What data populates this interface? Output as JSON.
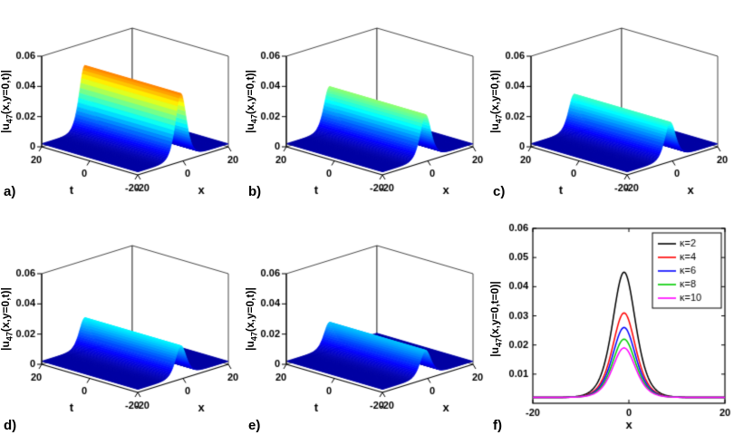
{
  "figure": {
    "background": "#ffffff",
    "colormap": "jet",
    "accent_colors": {
      "low": "#00008f",
      "high": "#d40000"
    }
  },
  "chart_data": [
    {
      "panel_label": "a)",
      "type": "surface3d",
      "ylabel": {
        "prefix": "|u",
        "sub": "47",
        "suffix": "(x,y=0,t)|"
      },
      "xlabel": "x",
      "tlabel": "t",
      "x_range": [
        -20,
        20
      ],
      "t_range": [
        -20,
        20
      ],
      "z_range": [
        0,
        0.06
      ],
      "x_ticks": [
        -20,
        0,
        20
      ],
      "t_ticks": [
        20,
        0,
        -20
      ],
      "z_ticks": [
        0,
        0.02,
        0.04,
        0.06
      ],
      "colormap": "jet",
      "cmax": 0.06,
      "surface": {
        "peak": 0.045,
        "center": -1,
        "width": 3.2,
        "baseline": 0.002
      }
    },
    {
      "panel_label": "b)",
      "type": "surface3d",
      "ylabel": {
        "prefix": "|u",
        "sub": "47",
        "suffix": "(x,y=0,t)|"
      },
      "xlabel": "x",
      "tlabel": "t",
      "x_range": [
        -20,
        20
      ],
      "t_range": [
        -20,
        20
      ],
      "z_range": [
        0,
        0.06
      ],
      "x_ticks": [
        -20,
        0,
        20
      ],
      "t_ticks": [
        20,
        0,
        -20
      ],
      "z_ticks": [
        0,
        0.02,
        0.04,
        0.06
      ],
      "colormap": "jet",
      "cmax": 0.06,
      "surface": {
        "peak": 0.031,
        "center": -1,
        "width": 3.2,
        "baseline": 0.002
      }
    },
    {
      "panel_label": "c)",
      "type": "surface3d",
      "ylabel": {
        "prefix": "|u",
        "sub": "47",
        "suffix": "(x,y=0,t)|"
      },
      "xlabel": "x",
      "tlabel": "t",
      "x_range": [
        -20,
        20
      ],
      "t_range": [
        -20,
        20
      ],
      "z_range": [
        0,
        0.06
      ],
      "x_ticks": [
        -20,
        0,
        20
      ],
      "t_ticks": [
        20,
        0,
        -20
      ],
      "z_ticks": [
        0,
        0.02,
        0.04,
        0.06
      ],
      "colormap": "jet",
      "cmax": 0.06,
      "surface": {
        "peak": 0.026,
        "center": -1,
        "width": 3.2,
        "baseline": 0.002
      }
    },
    {
      "panel_label": "d)",
      "type": "surface3d",
      "ylabel": {
        "prefix": "|u",
        "sub": "47",
        "suffix": "(x,y=0,t)|"
      },
      "xlabel": "x",
      "tlabel": "t",
      "x_range": [
        -20,
        20
      ],
      "t_range": [
        -20,
        20
      ],
      "z_range": [
        0,
        0.06
      ],
      "x_ticks": [
        -20,
        0,
        20
      ],
      "t_ticks": [
        20,
        0,
        -20
      ],
      "z_ticks": [
        0,
        0.02,
        0.04,
        0.06
      ],
      "colormap": "jet",
      "cmax": 0.06,
      "surface": {
        "peak": 0.022,
        "center": -1,
        "width": 3.2,
        "baseline": 0.002
      }
    },
    {
      "panel_label": "e)",
      "type": "surface3d",
      "ylabel": {
        "prefix": "|u",
        "sub": "47",
        "suffix": "(x,y=0,t)|"
      },
      "xlabel": "x",
      "tlabel": "t",
      "x_range": [
        -20,
        20
      ],
      "t_range": [
        -20,
        20
      ],
      "z_range": [
        0,
        0.06
      ],
      "x_ticks": [
        -20,
        0,
        20
      ],
      "t_ticks": [
        20,
        0,
        -20
      ],
      "z_ticks": [
        0,
        0.02,
        0.04,
        0.06
      ],
      "colormap": "jet",
      "cmax": 0.06,
      "surface": {
        "peak": 0.019,
        "center": -1,
        "width": 3.2,
        "baseline": 0.002
      }
    },
    {
      "panel_label": "f)",
      "type": "line",
      "ylabel": {
        "prefix": "|u",
        "sub": "47",
        "suffix": "(x,y=0,t=0)|"
      },
      "xlabel": "x",
      "x_range": [
        -20,
        20
      ],
      "y_range": [
        0,
        0.06
      ],
      "x_ticks": [
        -20,
        0,
        20
      ],
      "y_ticks": [
        0.01,
        0.02,
        0.03,
        0.04,
        0.05,
        0.06
      ],
      "legend_position": "top-right",
      "series": [
        {
          "label": "κ=2",
          "color": "#000000",
          "peak": 0.045,
          "center": -1,
          "width": 3.2,
          "baseline": 0.002
        },
        {
          "label": "κ=4",
          "color": "#ff0000",
          "peak": 0.031,
          "center": -1,
          "width": 3.2,
          "baseline": 0.002
        },
        {
          "label": "κ=6",
          "color": "#0000ff",
          "peak": 0.026,
          "center": -1,
          "width": 3.2,
          "baseline": 0.002
        },
        {
          "label": "κ=8",
          "color": "#00cc00",
          "peak": 0.022,
          "center": -1,
          "width": 3.2,
          "baseline": 0.002
        },
        {
          "label": "κ=10",
          "color": "#ff00ff",
          "peak": 0.019,
          "center": -1,
          "width": 3.2,
          "baseline": 0.002
        }
      ]
    }
  ]
}
